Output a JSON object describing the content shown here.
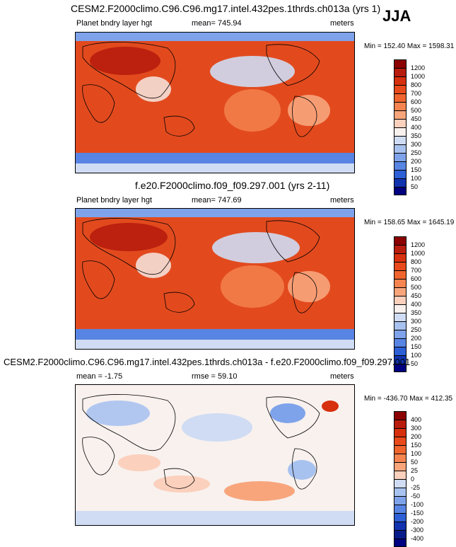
{
  "season": "JJA",
  "panels": [
    {
      "title": "CESM2.F2000climo.C96.C96.mg17.intel.432pes.1thrds.ch013a (yrs 1)",
      "left_label": "Planet bndry layer hgt",
      "mean_label": "mean= 745.94",
      "units": "meters",
      "minmax": "Min = 152.40 Max = 1598.31",
      "kind": "abs"
    },
    {
      "title": "f.e20.F2000climo.f09_f09.297.001 (yrs 2-11)",
      "left_label": "Planet bndry layer hgt",
      "mean_label": "mean= 747.69",
      "units": "meters",
      "minmax": "Min = 158.65 Max = 1645.19",
      "kind": "abs"
    },
    {
      "title": "CESM2.F2000climo.C96.C96.mg17.intel.432pes.1thrds.ch013a - f.e20.F2000climo.f09_f09.297.001",
      "left_label": "mean =  -1.75",
      "mean_label": "rmse =  59.10",
      "units": "meters",
      "minmax": "Min = -436.70 Max = 412.35",
      "kind": "diff"
    }
  ],
  "colorbars": {
    "abs": {
      "labels": [
        "1200",
        "1000",
        "800",
        "700",
        "600",
        "500",
        "450",
        "400",
        "350",
        "300",
        "250",
        "200",
        "150",
        "100",
        "50"
      ],
      "colors": [
        "#8b0000",
        "#b81c0c",
        "#d6300e",
        "#e84a1c",
        "#f0642e",
        "#f58450",
        "#f8a57c",
        "#fbd0bc",
        "#f8f1ee",
        "#cfdcf3",
        "#a8c2ef",
        "#7fa3ea",
        "#5884e3",
        "#2d5fd6",
        "#1133b0",
        "#000080"
      ]
    },
    "diff": {
      "labels": [
        "400",
        "300",
        "200",
        "150",
        "100",
        "50",
        "25",
        "0",
        "-25",
        "-50",
        "-100",
        "-150",
        "-200",
        "-300",
        "-400"
      ],
      "colors": [
        "#8b0000",
        "#b81c0c",
        "#d6300e",
        "#e84a1c",
        "#f0642e",
        "#f58450",
        "#f8a57c",
        "#fbd0bc",
        "#cfdcf3",
        "#a8c2ef",
        "#7fa3ea",
        "#5884e3",
        "#2d5fd6",
        "#1133b0",
        "#081b8a",
        "#000080"
      ]
    }
  }
}
